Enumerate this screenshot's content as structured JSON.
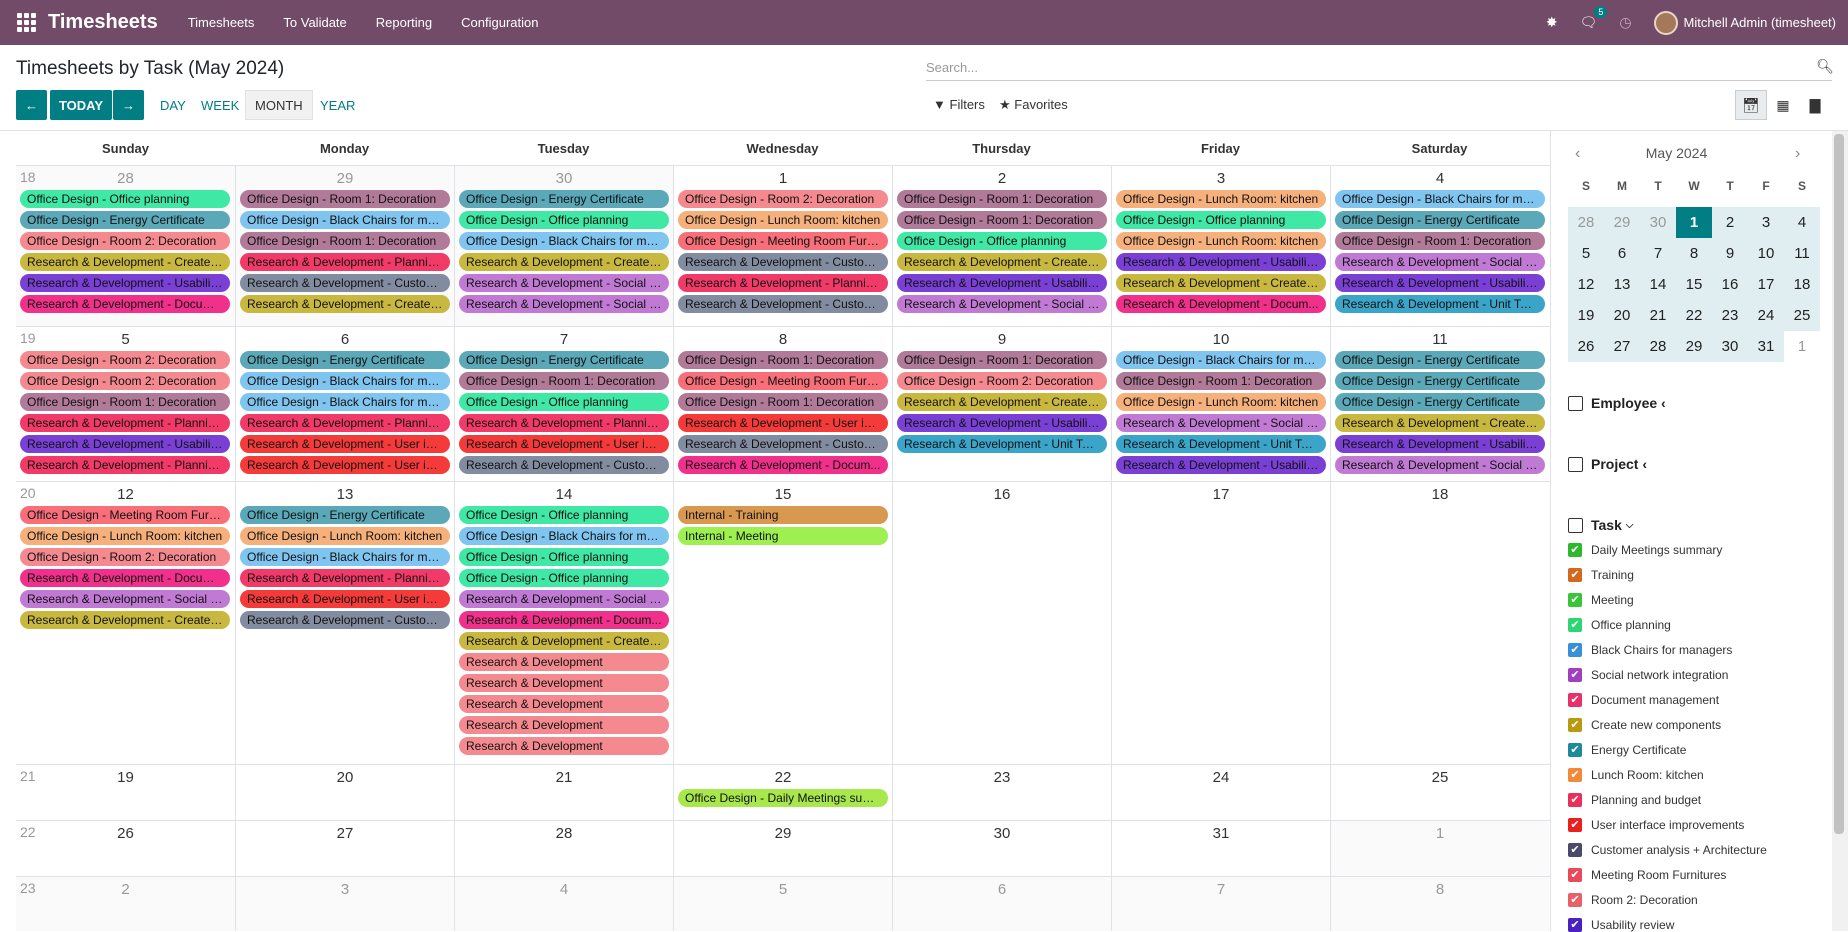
{
  "navbar": {
    "brand": "Timesheets",
    "menu": [
      "Timesheets",
      "To Validate",
      "Reporting",
      "Configuration"
    ],
    "chat_badge": "5",
    "user": "Mitchell Admin (timesheet)"
  },
  "control": {
    "title": "Timesheets by Task (May 2024)",
    "search_placeholder": "Search...",
    "today": "TODAY",
    "scales": [
      "DAY",
      "WEEK",
      "MONTH",
      "YEAR"
    ],
    "active_scale": "MONTH",
    "filters": "Filters",
    "favorites": "Favorites"
  },
  "calendar": {
    "weekdays": [
      "Sunday",
      "Monday",
      "Tuesday",
      "Wednesday",
      "Thursday",
      "Friday",
      "Saturday"
    ],
    "weeks": [
      {
        "num": "18",
        "days": [
          "28",
          "29",
          "30",
          "1",
          "2",
          "3",
          "4"
        ],
        "other": [
          true,
          true,
          true,
          false,
          false,
          false,
          false
        ]
      },
      {
        "num": "19",
        "days": [
          "5",
          "6",
          "7",
          "8",
          "9",
          "10",
          "11"
        ],
        "other": [
          false,
          false,
          false,
          false,
          false,
          false,
          false
        ]
      },
      {
        "num": "20",
        "days": [
          "12",
          "13",
          "14",
          "15",
          "16",
          "17",
          "18"
        ],
        "other": [
          false,
          false,
          false,
          false,
          false,
          false,
          false
        ]
      },
      {
        "num": "21",
        "days": [
          "19",
          "20",
          "21",
          "22",
          "23",
          "24",
          "25"
        ],
        "other": [
          false,
          false,
          false,
          false,
          false,
          false,
          false
        ]
      },
      {
        "num": "22",
        "days": [
          "26",
          "27",
          "28",
          "29",
          "30",
          "31",
          "1"
        ],
        "other": [
          false,
          false,
          false,
          false,
          false,
          false,
          true
        ]
      },
      {
        "num": "23",
        "days": [
          "2",
          "3",
          "4",
          "5",
          "6",
          "7",
          "8"
        ],
        "other": [
          true,
          true,
          true,
          true,
          true,
          true,
          true
        ]
      }
    ],
    "events": [
      [
        [
          [
            "Office Design - Office planning",
            "office_planning"
          ],
          [
            "Office Design - Energy Certificate",
            "energy"
          ],
          [
            "Office Design - Room 2: Decoration",
            "room2"
          ],
          [
            "Research & Development - Create ...",
            "create"
          ],
          [
            "Research & Development - Usabilit...",
            "usability"
          ],
          [
            "Research & Development - Docume...",
            "document"
          ]
        ],
        [
          [
            "Office Design - Room 1: Decoration",
            "room1"
          ],
          [
            "Office Design - Black Chairs for ma...",
            "chairs"
          ],
          [
            "Office Design - Room 1: Decoration",
            "room1"
          ],
          [
            "Research & Development - Plannin...",
            "planning"
          ],
          [
            "Research & Development - Custom...",
            "customer"
          ],
          [
            "Research & Development - Create ...",
            "create"
          ]
        ],
        [
          [
            "Office Design - Energy Certificate",
            "energy"
          ],
          [
            "Office Design - Office planning",
            "office_planning"
          ],
          [
            "Office Design - Black Chairs for ma...",
            "chairs"
          ],
          [
            "Research & Development - Create ...",
            "create"
          ],
          [
            "Research & Development - Social n...",
            "social"
          ],
          [
            "Research & Development - Social n...",
            "social"
          ]
        ],
        [
          [
            "Office Design - Room 2: Decoration",
            "room2"
          ],
          [
            "Office Design - Lunch Room: kitchen",
            "lunch"
          ],
          [
            "Office Design - Meeting Room Furn...",
            "meetingroom"
          ],
          [
            "Research & Development - Custom...",
            "customer"
          ],
          [
            "Research & Development - Plannin...",
            "planning"
          ],
          [
            "Research & Development - Custom...",
            "customer"
          ]
        ],
        [
          [
            "Office Design - Room 1: Decoration",
            "room1"
          ],
          [
            "Office Design - Room 1: Decoration",
            "room1"
          ],
          [
            "Office Design - Office planning",
            "office_planning"
          ],
          [
            "Research & Development - Create ...",
            "create"
          ],
          [
            "Research & Development - Usabilit...",
            "usability"
          ],
          [
            "Research & Development - Social n...",
            "social"
          ]
        ],
        [
          [
            "Office Design - Lunch Room: kitchen",
            "lunch"
          ],
          [
            "Office Design - Office planning",
            "office_planning"
          ],
          [
            "Office Design - Lunch Room: kitchen",
            "lunch"
          ],
          [
            "Research & Development - Usabilit...",
            "usability"
          ],
          [
            "Research & Development - Create ...",
            "create"
          ],
          [
            "Research & Development - Docum...",
            "document"
          ]
        ],
        [
          [
            "Office Design - Black Chairs for ma...",
            "chairs"
          ],
          [
            "Office Design - Energy Certificate",
            "energy"
          ],
          [
            "Office Design - Room 1: Decoration",
            "room1"
          ],
          [
            "Research & Development - Social n...",
            "social"
          ],
          [
            "Research & Development - Usabilit...",
            "usability"
          ],
          [
            "Research & Development - Unit Tes...",
            "unittest"
          ]
        ]
      ],
      [
        [
          [
            "Office Design - Room 2: Decoration",
            "room2"
          ],
          [
            "Office Design - Room 2: Decoration",
            "room2"
          ],
          [
            "Office Design - Room 1: Decoration",
            "room1"
          ],
          [
            "Research & Development - Plannin...",
            "planning"
          ],
          [
            "Research & Development - Usabilit...",
            "usability"
          ],
          [
            "Research & Development - Plannin...",
            "planning"
          ]
        ],
        [
          [
            "Office Design - Energy Certificate",
            "energy"
          ],
          [
            "Office Design - Black Chairs for ma...",
            "chairs"
          ],
          [
            "Office Design - Black Chairs for ma...",
            "chairs"
          ],
          [
            "Research & Development - Plannin...",
            "planning"
          ],
          [
            "Research & Development - User int...",
            "userint"
          ],
          [
            "Research & Development - User int...",
            "userint"
          ]
        ],
        [
          [
            "Office Design - Energy Certificate",
            "energy"
          ],
          [
            "Office Design - Room 1: Decoration",
            "room1"
          ],
          [
            "Office Design - Office planning",
            "office_planning"
          ],
          [
            "Research & Development - Plannin...",
            "planning"
          ],
          [
            "Research & Development - User int...",
            "userint"
          ],
          [
            "Research & Development - Custom...",
            "customer"
          ]
        ],
        [
          [
            "Office Design - Room 1: Decoration",
            "room1"
          ],
          [
            "Office Design - Meeting Room Furn...",
            "meetingroom"
          ],
          [
            "Office Design - Room 1: Decoration",
            "room1"
          ],
          [
            "Research & Development - User int...",
            "userint"
          ],
          [
            "Research & Development - Custom...",
            "customer"
          ],
          [
            "Research & Development - Docum...",
            "document"
          ]
        ],
        [
          [
            "Office Design - Room 1: Decoration",
            "room1"
          ],
          [
            "Office Design - Room 2: Decoration",
            "room2"
          ],
          [
            "Research & Development - Create ...",
            "create"
          ],
          [
            "Research & Development - Usabilit...",
            "usability"
          ],
          [
            "Research & Development - Unit Tes...",
            "unittest"
          ]
        ],
        [
          [
            "Office Design - Black Chairs for ma...",
            "chairs"
          ],
          [
            "Office Design - Room 1: Decoration",
            "room1"
          ],
          [
            "Office Design - Lunch Room: kitchen",
            "lunch"
          ],
          [
            "Research & Development - Social n...",
            "social"
          ],
          [
            "Research & Development - Unit Tes...",
            "unittest"
          ],
          [
            "Research & Development - Usabilit...",
            "usability"
          ]
        ],
        [
          [
            "Office Design - Energy Certificate",
            "energy"
          ],
          [
            "Office Design - Energy Certificate",
            "energy"
          ],
          [
            "Office Design - Energy Certificate",
            "energy"
          ],
          [
            "Research & Development - Create n...",
            "create"
          ],
          [
            "Research & Development - Usabilit...",
            "usability"
          ],
          [
            "Research & Development - Social n...",
            "social"
          ]
        ]
      ],
      [
        [
          [
            "Office Design - Meeting Room Furn...",
            "meetingroom"
          ],
          [
            "Office Design - Lunch Room: kitchen",
            "lunch"
          ],
          [
            "Office Design - Room 2: Decoration",
            "room2"
          ],
          [
            "Research & Development - Docume...",
            "document"
          ],
          [
            "Research & Development - Social n...",
            "social"
          ],
          [
            "Research & Development - Create ...",
            "create"
          ]
        ],
        [
          [
            "Office Design - Energy Certificate",
            "energy"
          ],
          [
            "Office Design - Lunch Room: kitchen",
            "lunch"
          ],
          [
            "Office Design - Black Chairs for ma...",
            "chairs"
          ],
          [
            "Research & Development - Plannin...",
            "planning"
          ],
          [
            "Research & Development - User int...",
            "userint"
          ],
          [
            "Research & Development - Custom...",
            "customer"
          ]
        ],
        [
          [
            "Office Design - Office planning",
            "office_planning"
          ],
          [
            "Office Design - Black Chairs for ma...",
            "chairs"
          ],
          [
            "Office Design - Office planning",
            "office_planning"
          ],
          [
            "Office Design - Office planning",
            "office_planning"
          ],
          [
            "Research & Development - Social n...",
            "social"
          ],
          [
            "Research & Development - Docum...",
            "document"
          ],
          [
            "Research & Development - Create ...",
            "create"
          ],
          [
            "Research & Development",
            "room2"
          ],
          [
            "Research & Development",
            "room2"
          ],
          [
            "Research & Development",
            "room2"
          ],
          [
            "Research & Development",
            "room2"
          ],
          [
            "Research & Development",
            "room2"
          ]
        ],
        [
          [
            "Internal - Training",
            "training"
          ],
          [
            "Internal - Meeting",
            "meeting"
          ]
        ],
        [],
        [],
        []
      ],
      [
        [],
        [],
        [],
        [
          [
            "Office Design - Daily Meetings sum...",
            "daily"
          ]
        ],
        [],
        [],
        []
      ],
      [
        [],
        [],
        [],
        [],
        [],
        [],
        []
      ],
      [
        [],
        [],
        [],
        [],
        [],
        [],
        []
      ]
    ]
  },
  "minical": {
    "title": "May 2024",
    "dow": [
      "S",
      "M",
      "T",
      "W",
      "T",
      "F",
      "S"
    ],
    "weeks": [
      [
        "28",
        "29",
        "30",
        "1",
        "2",
        "3",
        "4"
      ],
      [
        "5",
        "6",
        "7",
        "8",
        "9",
        "10",
        "11"
      ],
      [
        "12",
        "13",
        "14",
        "15",
        "16",
        "17",
        "18"
      ],
      [
        "19",
        "20",
        "21",
        "22",
        "23",
        "24",
        "25"
      ],
      [
        "26",
        "27",
        "28",
        "29",
        "30",
        "31",
        "1"
      ]
    ],
    "today": "1"
  },
  "filters": {
    "employee": "Employee",
    "project": "Project",
    "task": "Task",
    "tasks": [
      [
        "Daily Meetings summary",
        "daily"
      ],
      [
        "Training",
        "training"
      ],
      [
        "Meeting",
        "meeting"
      ],
      [
        "Office planning",
        "office_planning"
      ],
      [
        "Black Chairs for managers",
        "chairs"
      ],
      [
        "Social network integration",
        "social"
      ],
      [
        "Document management",
        "document"
      ],
      [
        "Create new components",
        "create"
      ],
      [
        "Energy Certificate",
        "energy"
      ],
      [
        "Lunch Room: kitchen",
        "lunch"
      ],
      [
        "Planning and budget",
        "planning"
      ],
      [
        "User interface improvements",
        "userint"
      ],
      [
        "Customer analysis + Architecture",
        "customer"
      ],
      [
        "Meeting Room Furnitures",
        "meetingroom"
      ],
      [
        "Room 2: Decoration",
        "room2"
      ],
      [
        "Usability review",
        "usability"
      ]
    ]
  },
  "colors": {
    "office_planning": "#3fe8a4",
    "energy": "#5aa8b8",
    "room2": "#f48a8f",
    "create": "#c9b840",
    "usability": "#7a3fd4",
    "document": "#f0308a",
    "room1": "#b07a98",
    "chairs": "#80c4f0",
    "planning": "#f23a68",
    "customer": "#828ca0",
    "social": "#c07ad4",
    "lunch": "#f5b07c",
    "meetingroom": "#f86f7a",
    "unittest": "#3aa5c9",
    "userint": "#f53a3a",
    "training": "#d99850",
    "meeting": "#9ef050",
    "daily": "#a8e84c",
    "text_on_dark": "#ffffff"
  },
  "checkbox_colors": {
    "daily": "#2eb82e",
    "training": "#d2691e",
    "meeting": "#3ac43a",
    "office_planning": "#2ed573",
    "chairs": "#3a8fd9",
    "social": "#a040c0",
    "document": "#e8306a",
    "create": "#b89a10",
    "energy": "#1f8a9a",
    "lunch": "#f08a3a",
    "planning": "#e8305a",
    "userint": "#e82020",
    "customer": "#4a4a6a",
    "meetingroom": "#e84a5a",
    "room2": "#e86068",
    "usability": "#4a20c0"
  }
}
